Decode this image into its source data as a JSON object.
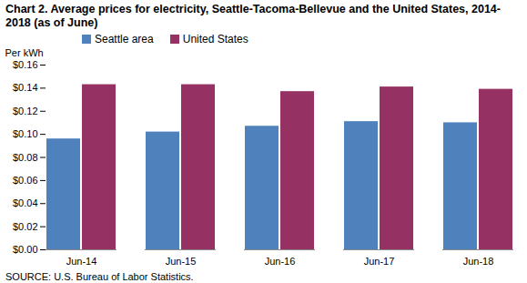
{
  "chart_data": {
    "type": "bar",
    "title": "Chart 2. Average prices for electricity, Seattle-Tacoma-Bellevue and the United States, 2014-2018  (as of June)",
    "y_label": "Per kWh",
    "source": "SOURCE: U.S. Bureau of Labor Statistics.",
    "categories": [
      "Jun-14",
      "Jun-15",
      "Jun-16",
      "Jun-17",
      "Jun-18"
    ],
    "series": [
      {
        "name": "Seattle area",
        "color": "#4f81bd",
        "values": [
          0.096,
          0.102,
          0.107,
          0.111,
          0.11
        ]
      },
      {
        "name": "United States",
        "color": "#953163",
        "values": [
          0.143,
          0.143,
          0.137,
          0.141,
          0.139
        ]
      }
    ],
    "ylim": [
      0,
      0.16
    ],
    "yticks": [
      {
        "value": 0,
        "label": "$0.00"
      },
      {
        "value": 0.02,
        "label": "$0.02"
      },
      {
        "value": 0.04,
        "label": "$0.04"
      },
      {
        "value": 0.06,
        "label": "$0.06"
      },
      {
        "value": 0.08,
        "label": "$0.08"
      },
      {
        "value": 0.1,
        "label": "$0.10"
      },
      {
        "value": 0.12,
        "label": "$0.12"
      },
      {
        "value": 0.14,
        "label": "$0.14"
      },
      {
        "value": 0.16,
        "label": "$0.16"
      }
    ],
    "grid": false,
    "legend": "top-left"
  }
}
